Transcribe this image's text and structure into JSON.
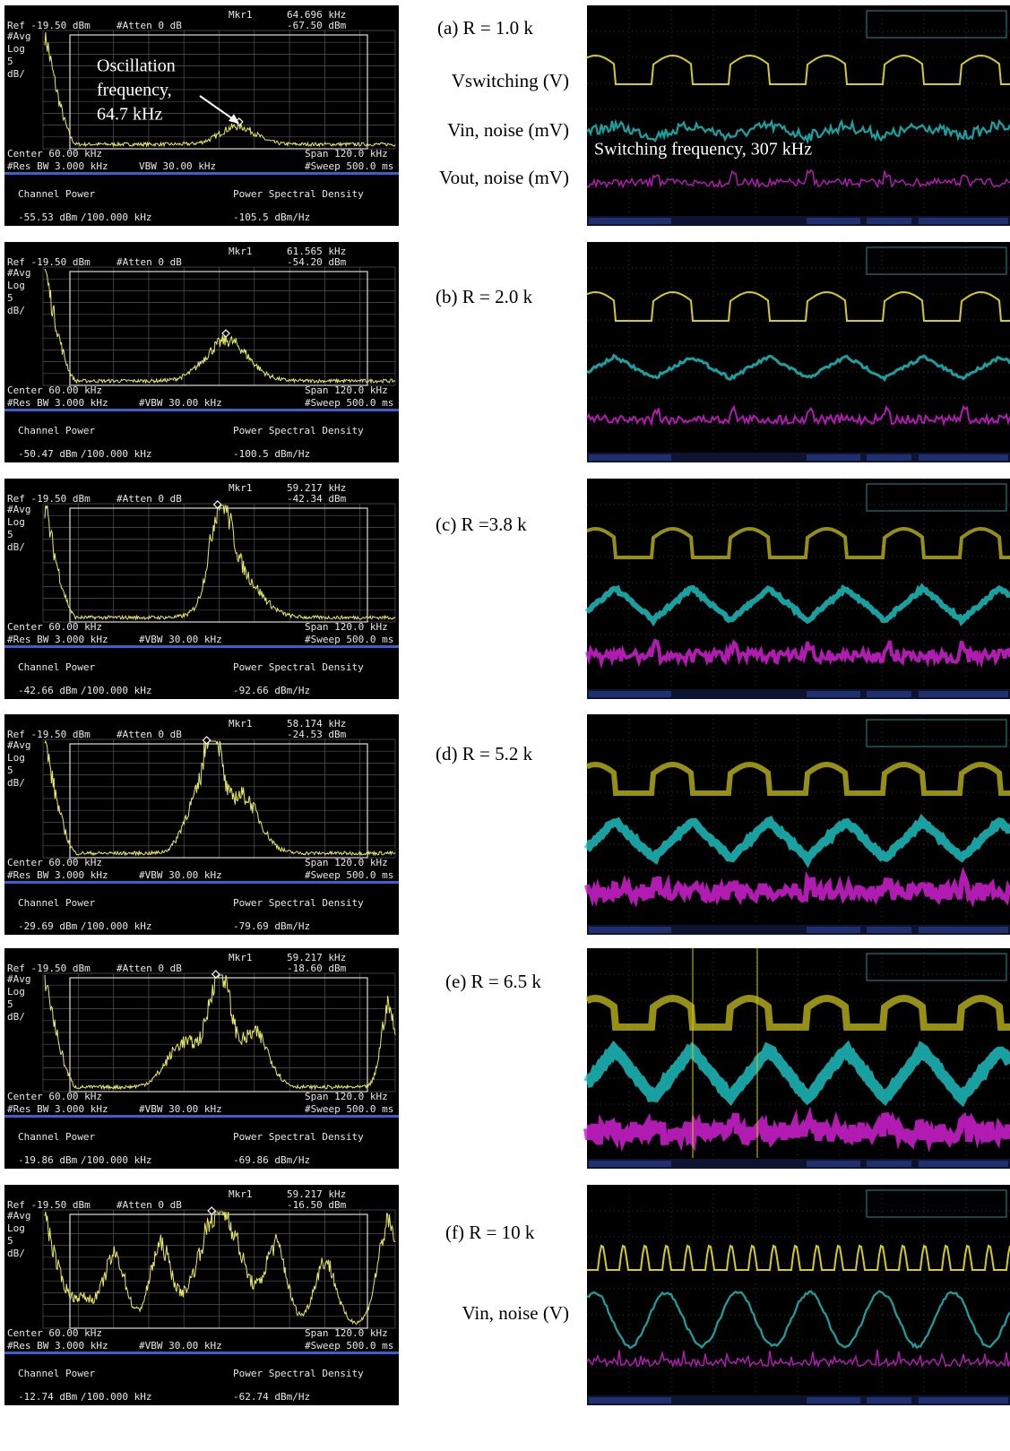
{
  "panels": [
    {
      "label": "(a)   R = 1.0 k",
      "signals": [
        "Vswitching (V)",
        "Vin, noise (mV)",
        "Vout, noise (mV)"
      ],
      "annotation": [
        "Oscillation",
        "frequency,",
        "64.7 kHz"
      ],
      "scope_annotation": "Switching frequency, 307 kHz",
      "spectrum": {
        "marker": "Mkr1",
        "marker_freq": "64.696 kHz",
        "ref": "Ref -19.50 dBm",
        "atten": "#Atten 0 dB",
        "marker_level": "-67.50 dBm",
        "scale": [
          "#Avg",
          "Log",
          "5",
          "dB/"
        ],
        "center": "Center 60.00 kHz",
        "span": "Span 120.0 kHz",
        "res_bw": "#Res BW 3.000 kHz",
        "vbw": "VBW 30.00 kHz",
        "sweep": "#Sweep 500.0 ms",
        "channel_power_label": "Channel Power",
        "psd_label": "Power Spectral Density",
        "channel_power": "-55.53 dBm",
        "bandwidth": "/100.000 kHz",
        "psd": "-105.5 dBm/Hz"
      }
    },
    {
      "label": "(b) R = 2.0 k",
      "spectrum": {
        "marker": "Mkr1",
        "marker_freq": "61.565 kHz",
        "ref": "Ref -19.50 dBm",
        "atten": "#Atten 0 dB",
        "marker_level": "-54.20 dBm",
        "scale": [
          "#Avg",
          "Log",
          "5",
          "dB/"
        ],
        "center": "Center 60.00 kHz",
        "span": "Span 120.0 kHz",
        "res_bw": "#Res BW 3.000 kHz",
        "vbw": "#VBW 30.00 kHz",
        "sweep": "#Sweep 500.0 ms",
        "channel_power_label": "Channel Power",
        "psd_label": "Power Spectral Density",
        "channel_power": "-50.47 dBm",
        "bandwidth": "/100.000 kHz",
        "psd": "-100.5 dBm/Hz"
      }
    },
    {
      "label": "(c) R =3.8 k",
      "spectrum": {
        "marker": "Mkr1",
        "marker_freq": "59.217 kHz",
        "ref": "Ref -19.50 dBm",
        "atten": "#Atten 0 dB",
        "marker_level": "-42.34 dBm",
        "scale": [
          "#Avg",
          "Log",
          "5",
          "dB/"
        ],
        "center": "Center 60.00 kHz",
        "span": "Span 120.0 kHz",
        "res_bw": "#Res BW 3.000 kHz",
        "vbw": "#VBW 30.00 kHz",
        "sweep": "#Sweep 500.0 ms",
        "channel_power_label": "Channel Power",
        "psd_label": "Power Spectral Density",
        "channel_power": "-42.66 dBm",
        "bandwidth": "/100.000 kHz",
        "psd": "-92.66 dBm/Hz"
      }
    },
    {
      "label": "(d) R = 5.2 k",
      "spectrum": {
        "marker": "Mkr1",
        "marker_freq": "58.174 kHz",
        "ref": "Ref -19.50 dBm",
        "atten": "#Atten 0 dB",
        "marker_level": "-24.53 dBm",
        "scale": [
          "#Avg",
          "Log",
          "5",
          "dB/"
        ],
        "center": "Center 60.00 kHz",
        "span": "Span 120.0 kHz",
        "res_bw": "#Res BW 3.000 kHz",
        "vbw": "#VBW 30.00 kHz",
        "sweep": "#Sweep 500.0 ms",
        "channel_power_label": "Channel Power",
        "psd_label": "Power Spectral Density",
        "channel_power": "-29.69 dBm",
        "bandwidth": "/100.000 kHz",
        "psd": "-79.69 dBm/Hz"
      }
    },
    {
      "label": "(e) R = 6.5 k",
      "spectrum": {
        "marker": "Mkr1",
        "marker_freq": "59.217 kHz",
        "ref": "Ref -19.50 dBm",
        "atten": "#Atten 0 dB",
        "marker_level": "-18.60 dBm",
        "scale": [
          "#Avg",
          "Log",
          "5",
          "dB/"
        ],
        "center": "Center 60.00 kHz",
        "span": "Span 120.0 kHz",
        "res_bw": "#Res BW 3.000 kHz",
        "vbw": "#VBW 30.00 kHz",
        "sweep": "#Sweep 500.0 ms",
        "channel_power_label": "Channel Power",
        "psd_label": "Power Spectral Density",
        "channel_power": "-19.86 dBm",
        "bandwidth": "/100.000 kHz",
        "psd": "-69.86 dBm/Hz"
      }
    },
    {
      "label": "(f) R = 10 k",
      "signals": [
        "Vin, noise (V)"
      ],
      "spectrum": {
        "marker": "Mkr1",
        "marker_freq": "59.217 kHz",
        "ref": "Ref -19.50 dBm",
        "atten": "#Atten 0 dB",
        "marker_level": "-16.50 dBm",
        "scale": [
          "#Avg",
          "Log",
          "5",
          "dB/"
        ],
        "center": "Center 60.00 kHz",
        "span": "Span 120.0 kHz",
        "res_bw": "#Res BW 3.000 kHz",
        "vbw": "#VBW 30.00 kHz",
        "sweep": "#Sweep 500.0 ms",
        "channel_power_label": "Channel Power",
        "psd_label": "Power Spectral Density",
        "channel_power": "-12.74 dBm",
        "bandwidth": "/100.000 kHz",
        "psd": "-62.74 dBm/Hz"
      }
    }
  ]
}
